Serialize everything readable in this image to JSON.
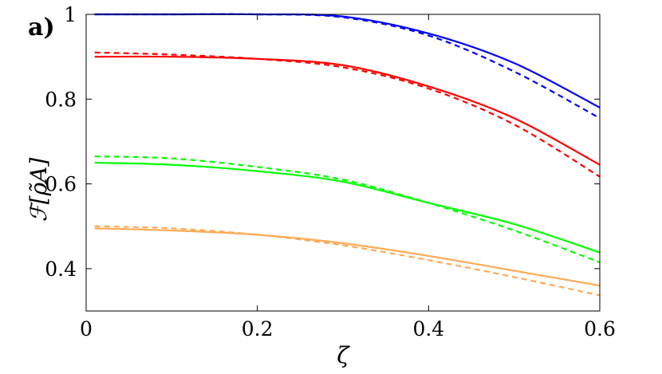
{
  "chart_data": {
    "type": "line",
    "panel_label": "a)",
    "xlabel": "ζ",
    "ylabel": "ℱ[ρ̃A]",
    "xlim": [
      0,
      0.6
    ],
    "ylim": [
      0.3,
      1.0
    ],
    "x_ticks": [
      0,
      0.2,
      0.4,
      0.6
    ],
    "x_tick_labels": [
      "0",
      "0.2",
      "0.4",
      "0.6"
    ],
    "y_ticks": [
      0.4,
      0.6,
      0.8,
      1.0
    ],
    "y_tick_labels": [
      "0.4",
      "0.6",
      "0.8",
      "1"
    ],
    "grid": false,
    "legend": false,
    "x": [
      0.01,
      0.1,
      0.2,
      0.3,
      0.4,
      0.5,
      0.6
    ],
    "series": [
      {
        "color": "#0000ff",
        "style": "solid",
        "values": [
          1.0,
          1.0,
          1.0,
          0.995,
          0.955,
          0.885,
          0.78
        ]
      },
      {
        "color": "#0000ff",
        "style": "dashed",
        "values": [
          1.0,
          1.0,
          1.0,
          0.993,
          0.95,
          0.865,
          0.755
        ]
      },
      {
        "color": "#ff0000",
        "style": "solid",
        "values": [
          0.9,
          0.9,
          0.895,
          0.88,
          0.83,
          0.755,
          0.645
        ]
      },
      {
        "color": "#ff0000",
        "style": "dashed",
        "values": [
          0.91,
          0.905,
          0.895,
          0.875,
          0.825,
          0.74,
          0.617
        ]
      },
      {
        "color": "#00ff00",
        "style": "solid",
        "values": [
          0.65,
          0.645,
          0.63,
          0.605,
          0.555,
          0.505,
          0.438
        ]
      },
      {
        "color": "#00ff00",
        "style": "dashed",
        "values": [
          0.665,
          0.66,
          0.64,
          0.61,
          0.555,
          0.49,
          0.415
        ]
      },
      {
        "color": "#ffaa55",
        "style": "solid",
        "values": [
          0.495,
          0.49,
          0.48,
          0.46,
          0.43,
          0.395,
          0.36
        ]
      },
      {
        "color": "#ffaa55",
        "style": "dashed",
        "values": [
          0.5,
          0.495,
          0.48,
          0.455,
          0.42,
          0.38,
          0.337
        ]
      }
    ]
  }
}
